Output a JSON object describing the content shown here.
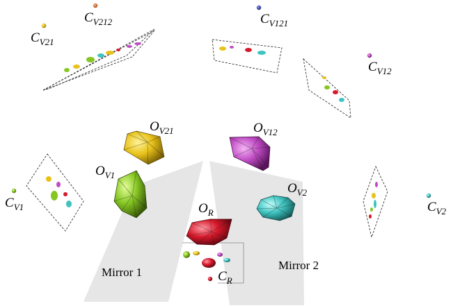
{
  "labels": {
    "c_v212": {
      "main": "C",
      "sub": "V212"
    },
    "c_v121": {
      "main": "C",
      "sub": "V121"
    },
    "c_v21": {
      "main": "C",
      "sub": "V21"
    },
    "c_v12": {
      "main": "C",
      "sub": "V12"
    },
    "o_v21": {
      "main": "O",
      "sub": "V21"
    },
    "o_v12": {
      "main": "O",
      "sub": "V12"
    },
    "o_v1": {
      "main": "O",
      "sub": "V1"
    },
    "o_v2": {
      "main": "O",
      "sub": "V2"
    },
    "o_r": {
      "main": "O",
      "sub": "R"
    },
    "c_v1": {
      "main": "C",
      "sub": "V1"
    },
    "c_v2": {
      "main": "C",
      "sub": "V2"
    },
    "c_r": {
      "main": "C",
      "sub": "R"
    }
  },
  "mirrors": {
    "mirror_1": "Mirror 1",
    "mirror_2": "Mirror 2"
  },
  "colors": {
    "yellow": "#e8c21a",
    "magenta": "#c04cc4",
    "green": "#86c623",
    "cyan": "#3ec3c0",
    "red": "#d6182a",
    "orange": "#d4651a",
    "blue": "#2a3ab0",
    "mirror_fill": "#e6e6e6"
  }
}
